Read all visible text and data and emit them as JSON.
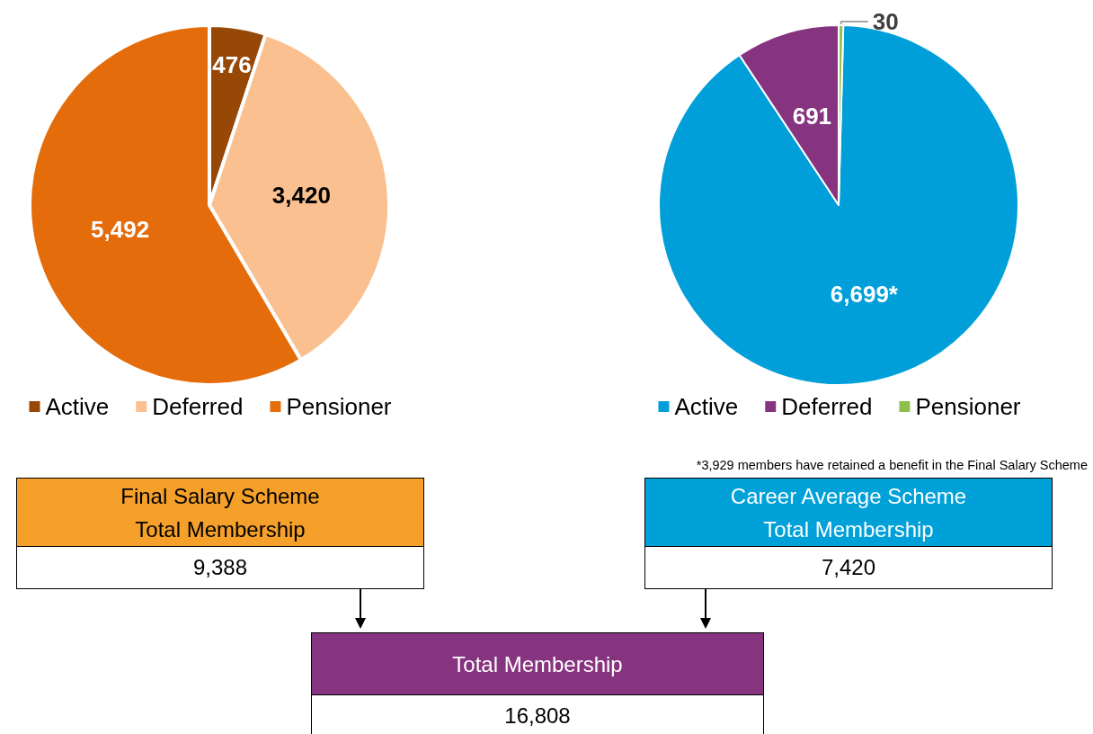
{
  "chart_data": [
    {
      "type": "pie",
      "categories": [
        "Active",
        "Deferred",
        "Pensioner"
      ],
      "values": [
        476,
        3420,
        5492
      ],
      "colors": [
        "#974706",
        "#fac090",
        "#e46c0a"
      ],
      "value_labels": [
        "476",
        "3,420",
        "5,492"
      ],
      "legend": "bottom"
    },
    {
      "type": "pie",
      "categories": [
        "Active",
        "Deferred",
        "Pensioner"
      ],
      "values": [
        6699,
        691,
        30
      ],
      "colors": [
        "#009fd9",
        "#873480",
        "#8fbf4a"
      ],
      "value_labels": [
        "6,699*",
        "691",
        "30"
      ],
      "legend": "bottom",
      "annotations": [
        "*3,929 members have retained a benefit in the Final Salary Scheme"
      ]
    },
    {
      "type": "other",
      "categories": [
        "Final Salary Scheme\nTotal Membership",
        "Career Average Scheme\nTotal Membership",
        "Total Membership"
      ],
      "value_labels": [
        "9,388",
        "7,420",
        "16,808"
      ],
      "colors": [
        "#f5a02a",
        "#00a0d8",
        "#873480"
      ]
    }
  ]
}
